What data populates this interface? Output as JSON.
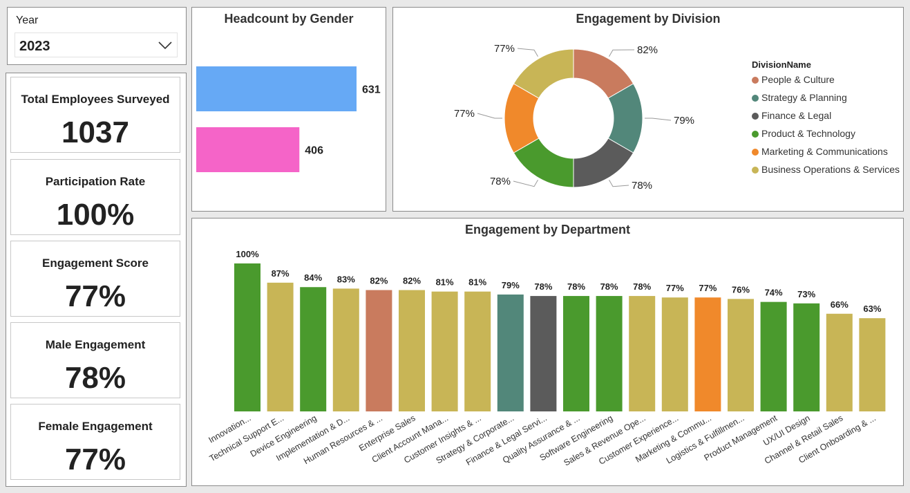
{
  "year_slicer": {
    "label": "Year",
    "value": "2023"
  },
  "kpis": [
    {
      "label": "Total Employees Surveyed",
      "value": "1037"
    },
    {
      "label": "Participation Rate",
      "value": "100%"
    },
    {
      "label": "Engagement Score",
      "value": "77%"
    },
    {
      "label": "Male Engagement",
      "value": "78%"
    },
    {
      "label": "Female Engagement",
      "value": "77%"
    }
  ],
  "chart_data": [
    {
      "type": "bar",
      "orientation": "horizontal",
      "title": "Headcount by Gender",
      "values": [
        631,
        406
      ],
      "colors": [
        "#66a9f5",
        "#f564c8"
      ],
      "data_labels": [
        "631",
        "406"
      ]
    },
    {
      "type": "pie",
      "variant": "donut",
      "title": "Engagement by Division",
      "legend_title": "DivisionName",
      "legend_position": "right",
      "slices": [
        {
          "name": "People & Culture",
          "label": "82%",
          "color": "#c97b5e"
        },
        {
          "name": "Strategy & Planning",
          "label": "79%",
          "color": "#52877a"
        },
        {
          "name": "Finance & Legal",
          "label": "78%",
          "color": "#5b5b5b"
        },
        {
          "name": "Product & Technology",
          "label": "78%",
          "color": "#4a9a2d"
        },
        {
          "name": "Marketing & Communications",
          "label": "77%",
          "color": "#f0892b"
        },
        {
          "name": "Business Operations & Services",
          "label": "77%",
          "color": "#c8b556"
        }
      ]
    },
    {
      "type": "bar",
      "title": "Engagement by Department",
      "ylim": [
        0,
        100
      ],
      "categories": [
        "Innovation...",
        "Technical Support E...",
        "Device Engineering",
        "Implementation & D...",
        "Human Resources & ...",
        "Enterprise Sales",
        "Client Account Mana...",
        "Customer Insights & ...",
        "Strategy & Corporate...",
        "Finance & Legal Servi...",
        "Quality Assurance & ...",
        "Software Engineering",
        "Sales & Revenue Ope...",
        "Customer Experience...",
        "Marketing & Commu...",
        "Logistics & Fulfillmen...",
        "Product Management",
        "UX/UI Design",
        "Channel & Retail Sales",
        "Client Onboarding & ..."
      ],
      "values": [
        100,
        87,
        84,
        83,
        82,
        82,
        81,
        81,
        79,
        78,
        78,
        78,
        78,
        77,
        77,
        76,
        74,
        73,
        66,
        63
      ],
      "data_labels": [
        "100%",
        "87%",
        "84%",
        "83%",
        "82%",
        "82%",
        "81%",
        "81%",
        "79%",
        "78%",
        "78%",
        "78%",
        "78%",
        "77%",
        "77%",
        "76%",
        "74%",
        "73%",
        "66%",
        "63%"
      ],
      "colors": [
        "#4a9a2d",
        "#c8b556",
        "#4a9a2d",
        "#c8b556",
        "#c97b5e",
        "#c8b556",
        "#c8b556",
        "#c8b556",
        "#52877a",
        "#5b5b5b",
        "#4a9a2d",
        "#4a9a2d",
        "#c8b556",
        "#c8b556",
        "#f0892b",
        "#c8b556",
        "#4a9a2d",
        "#4a9a2d",
        "#c8b556",
        "#c8b556"
      ]
    }
  ]
}
